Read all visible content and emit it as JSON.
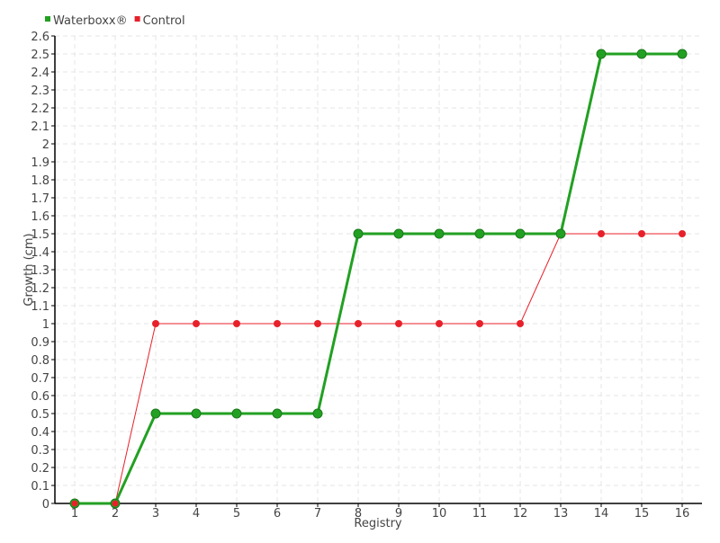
{
  "chart_data": {
    "type": "line",
    "title": "",
    "xlabel": "Registry",
    "ylabel": "Growth (cm)",
    "x": [
      1,
      2,
      3,
      4,
      5,
      6,
      7,
      8,
      9,
      10,
      11,
      12,
      13,
      14,
      15,
      16
    ],
    "xticks": [
      "1",
      "2",
      "3",
      "4",
      "5",
      "6",
      "7",
      "8",
      "9",
      "10",
      "11",
      "12",
      "13",
      "14",
      "15",
      "16"
    ],
    "ylim": [
      0,
      2.6
    ],
    "yticks": [
      "0",
      "0.1",
      "0.2",
      "0.3",
      "0.4",
      "0.5",
      "0.6",
      "0.7",
      "0.8",
      "0.9",
      "1",
      "1.1",
      "1.2",
      "1.3",
      "1.4",
      "1.5",
      "1.6",
      "1.7",
      "1.8",
      "1.9",
      "2",
      "2.1",
      "2.2",
      "2.3",
      "2.4",
      "2.5",
      "2.6"
    ],
    "grid": true,
    "legend_placement": "top-left",
    "series": [
      {
        "name": "Waterboxx®",
        "color": "#22a022",
        "values": [
          0,
          0,
          0.5,
          0.5,
          0.5,
          0.5,
          0.5,
          1.5,
          1.5,
          1.5,
          1.5,
          1.5,
          1.5,
          2.5,
          2.5,
          2.5
        ]
      },
      {
        "name": "Control",
        "color": "#e8202a",
        "values": [
          0,
          0,
          1,
          1,
          1,
          1,
          1,
          1,
          1,
          1,
          1,
          1,
          1.5,
          1.5,
          1.5,
          1.5
        ]
      }
    ]
  }
}
